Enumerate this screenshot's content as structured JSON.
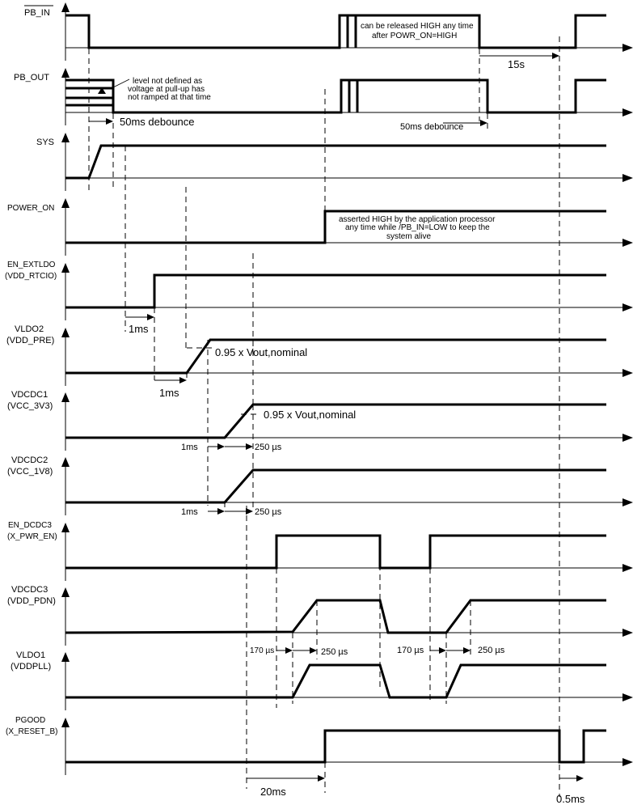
{
  "signals": [
    {
      "name": "PB_IN",
      "overbar": true
    },
    {
      "name": "PB_OUT"
    },
    {
      "name": "SYS"
    },
    {
      "name": "POWER_ON"
    },
    {
      "name": "EN_EXTLDO",
      "sub": "(VDD_RTCIO)"
    },
    {
      "name": "VLDO2",
      "sub": "(VDD_PRE)"
    },
    {
      "name": "VDCDC1",
      "sub": "(VCC_3V3)"
    },
    {
      "name": "VDCDC2",
      "sub": "(VCC_1V8)"
    },
    {
      "name": "EN_DCDC3",
      "sub": "(X_PWR_EN)"
    },
    {
      "name": "VDCDC3",
      "sub": "(VDD_PDN)"
    },
    {
      "name": "VLDO1",
      "sub": "(VDDPLL)"
    },
    {
      "name": "PGOOD",
      "sub": "(X_RESET_B)"
    }
  ],
  "notes": {
    "pb_in_release": [
      "can be released HIGH any time",
      "after POWR_ON=HIGH"
    ],
    "pb_out_level": [
      "level not defined as",
      "voltage at pull-up has",
      "not ramped at that time"
    ],
    "power_on": [
      "asserted HIGH by the application processor",
      "any time while /PB_IN=LOW to keep the",
      "system alive"
    ],
    "vldo2_threshold": "0.95 x Vout,nominal",
    "vdcdc1_threshold": "0.95 x Vout,nominal"
  },
  "timings": {
    "debounce_1": "50ms debounce",
    "debounce_2": "50ms debounce",
    "hold_15s": "15s",
    "extldo_delay": "1ms",
    "vldo2_delay": "1ms",
    "vdcdc1_delay": "1ms",
    "vdcdc1_ramp": "250 µs",
    "vdcdc2_delay": "1ms",
    "vdcdc2_ramp": "250 µs",
    "dcdc3_delay_1": "170 µs",
    "dcdc3_ramp_1": "250 µs",
    "dcdc3_delay_2": "170 µs",
    "dcdc3_ramp_2": "250 µs",
    "pgood_delay": "20ms",
    "reset_pulse": "0.5ms"
  }
}
